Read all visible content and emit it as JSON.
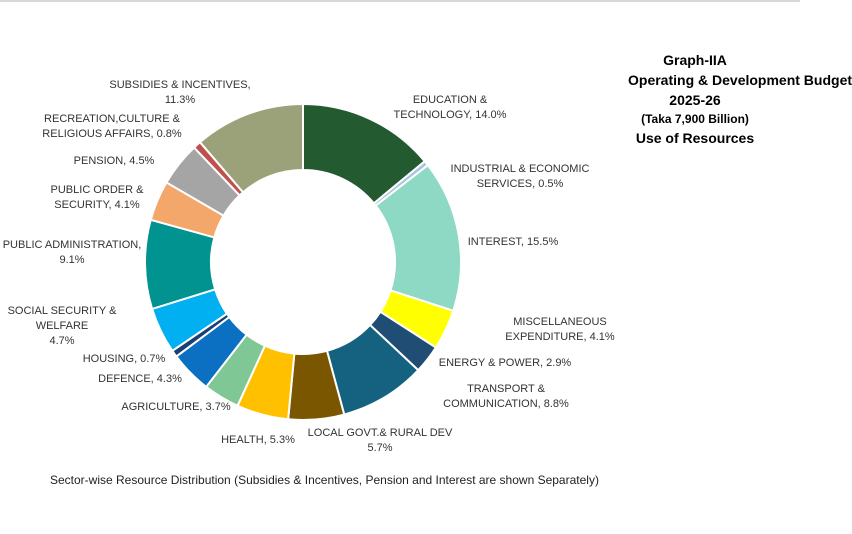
{
  "title": {
    "line1": "Graph-IIA",
    "line2": "Operating & Development Budget",
    "line3": "2025-26",
    "line4": "(Taka 7,900 Billion)",
    "line5": "Use of Resources"
  },
  "caption": "Sector-wise Resource Distribution (Subsidies & Incentives, Pension and Interest are shown Separately)",
  "chart_data": {
    "type": "pie",
    "donut": true,
    "title": "Graph-IIA Operating & Development Budget 2025-26 (Taka 7,900 Billion) Use of Resources",
    "unit": "%",
    "slices": [
      {
        "name": "EDUCATION & TECHNOLOGY",
        "value": 14.0,
        "color": "#235a30",
        "label": [
          "EDUCATION  &",
          "TECHNOLOGY, 14.0%"
        ]
      },
      {
        "name": "INDUSTRIAL & ECONOMIC SERVICES",
        "value": 0.5,
        "color": "#a8c4e0",
        "label": [
          "INDUSTRIAL & ECONOMIC",
          "SERVICES, 0.5%"
        ]
      },
      {
        "name": "INTEREST",
        "value": 15.5,
        "color": "#8ed9c3",
        "label": [
          "INTEREST, 15.5%"
        ]
      },
      {
        "name": "MISCELLANEOUS EXPENDITURE",
        "value": 4.1,
        "color": "#ffff00",
        "label": [
          "MISCELLANEOUS",
          "EXPENDITURE, 4.1%"
        ]
      },
      {
        "name": "ENERGY & POWER",
        "value": 2.9,
        "color": "#1f4d73",
        "label": [
          "ENERGY & POWER, 2.9%"
        ]
      },
      {
        "name": "TRANSPORT & COMMUNICATION",
        "value": 8.8,
        "color": "#146280",
        "label": [
          "TRANSPORT &",
          "COMMUNICATION, 8.8%"
        ]
      },
      {
        "name": "LOCAL GOVT.& RURAL DEV",
        "value": 5.7,
        "color": "#7a5600",
        "label": [
          "LOCAL GOVT.& RURAL DEV",
          "5.7%"
        ]
      },
      {
        "name": "HEALTH",
        "value": 5.3,
        "color": "#ffc000",
        "label": [
          "HEALTH, 5.3%"
        ]
      },
      {
        "name": "AGRICULTURE",
        "value": 3.7,
        "color": "#7fc895",
        "label": [
          "AGRICULTURE, 3.7%"
        ]
      },
      {
        "name": "DEFENCE",
        "value": 4.3,
        "color": "#0b6fc2",
        "label": [
          "DEFENCE, 4.3%"
        ]
      },
      {
        "name": "HOUSING",
        "value": 0.7,
        "color": "#1b3f73",
        "label": [
          "HOUSING, 0.7%"
        ]
      },
      {
        "name": "SOCIAL SECURITY & WELFARE",
        "value": 4.7,
        "color": "#00b0f0",
        "label": [
          "SOCIAL SECURITY &",
          "WELFARE",
          "4.7%"
        ]
      },
      {
        "name": "PUBLIC ADMINISTRATION",
        "value": 9.1,
        "color": "#00938f",
        "label": [
          "PUBLIC ADMINISTRATION,",
          "9.1%"
        ]
      },
      {
        "name": "PUBLIC ORDER & SECURITY",
        "value": 4.1,
        "color": "#f4a76a",
        "label": [
          "PUBLIC ORDER &",
          "SECURITY, 4.1%"
        ]
      },
      {
        "name": "PENSION",
        "value": 4.5,
        "color": "#a5a5a5",
        "label": [
          "PENSION, 4.5%"
        ]
      },
      {
        "name": "RECREATION,CULTURE & RELIGIOUS AFFAIRS",
        "value": 0.8,
        "color": "#c0504d",
        "label": [
          "RECREATION,CULTURE &",
          "RELIGIOUS AFFAIRS, 0.8%"
        ]
      },
      {
        "name": "SUBSIDIES & INCENTIVES",
        "value": 11.3,
        "color": "#9ba27a",
        "label": [
          "SUBSIDIES & INCENTIVES,",
          "11.3%"
        ]
      }
    ],
    "start": "12 o'clock",
    "direction": "clockwise",
    "legend": "none (labels beside slices)"
  }
}
